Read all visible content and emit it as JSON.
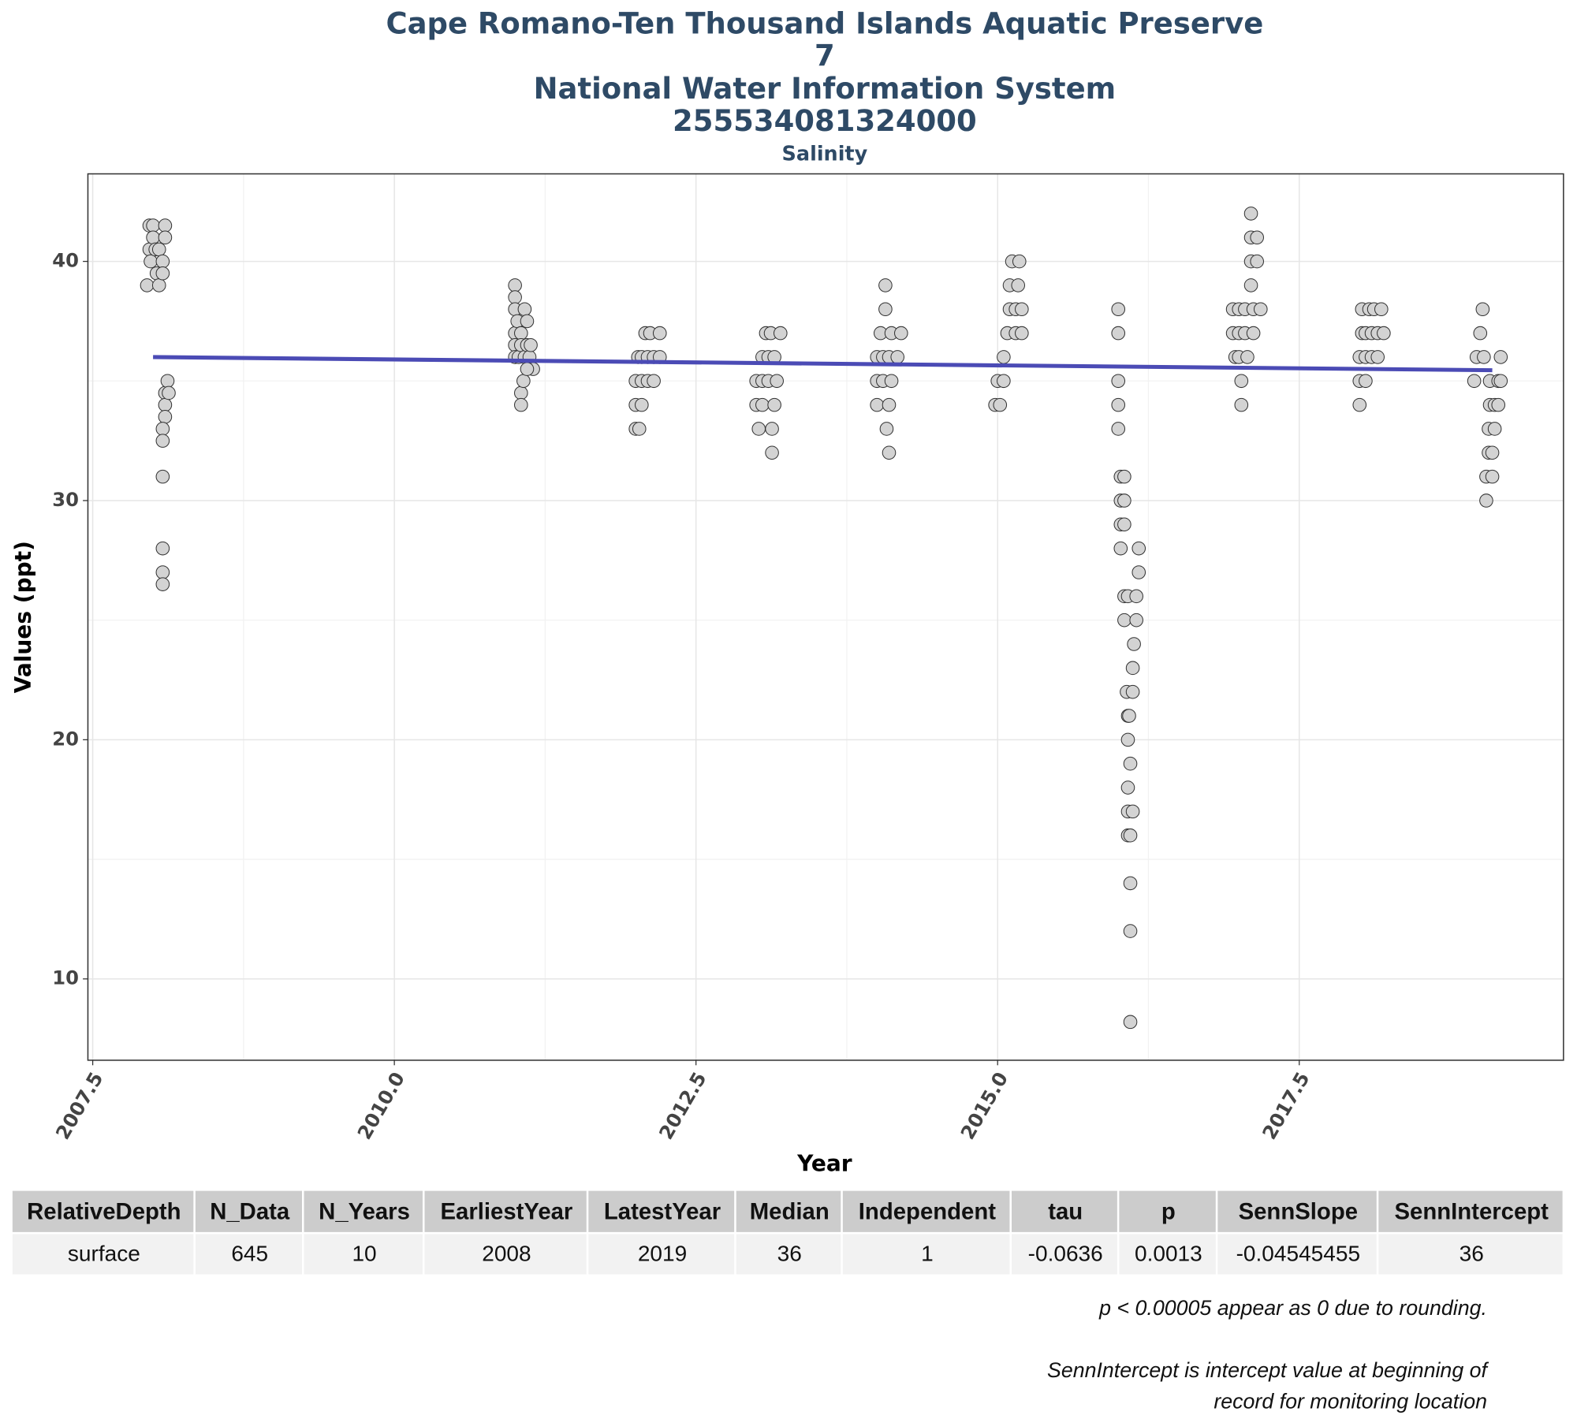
{
  "chart_data": {
    "type": "scatter",
    "title": [
      "Cape Romano-Ten Thousand Islands Aquatic Preserve",
      "7",
      "National Water Information System",
      "255534081324000"
    ],
    "subtitle": "Salinity",
    "x_label": "Year",
    "y_label": "Values (ppt)",
    "xlim": [
      2007.46,
      2019.69
    ],
    "ylim": [
      6.6,
      43.66
    ],
    "xticks": [
      2007.5,
      {
        "value": 2010,
        "label": "2010.0"
      },
      2012.5,
      {
        "value": 2015,
        "label": "2015.0"
      },
      2017.5
    ],
    "yticks": [
      10,
      20,
      30,
      40
    ],
    "grid": true,
    "point_color": "#d3d3d3",
    "x": [
      2007.95,
      2007.97,
      2007.97,
      2007.98,
      2008.0,
      2008.0,
      2008.02,
      2008.03,
      2008.05,
      2008.05,
      2008.1,
      2008.1,
      2008.08,
      2008.08,
      2008.1,
      2008.12,
      2008.1,
      2008.1,
      2008.08,
      2008.08,
      2008.08,
      2008.08,
      2008.08,
      2008.08,
      2008.13,
      2011.0,
      2011.0,
      2011.0,
      2011.0,
      2011.0,
      2011.0,
      2011.02,
      2011.03,
      2011.05,
      2011.05,
      2011.05,
      2011.05,
      2011.07,
      2011.08,
      2011.08,
      2011.1,
      2011.1,
      2011.12,
      2011.13,
      2011.15,
      2011.1,
      2012.0,
      2012.0,
      2012.0,
      2012.02,
      2012.05,
      2012.05,
      2012.05,
      2012.08,
      2012.1,
      2012.1,
      2012.12,
      2012.15,
      2012.15,
      2012.2,
      2012.2,
      2012.03,
      2013.0,
      2013.0,
      2013.02,
      2013.05,
      2013.05,
      2013.05,
      2013.08,
      2013.1,
      2013.1,
      2013.12,
      2013.13,
      2013.13,
      2013.15,
      2013.15,
      2013.17,
      2013.2,
      2014.0,
      2014.0,
      2014.0,
      2014.03,
      2014.05,
      2014.05,
      2014.07,
      2014.07,
      2014.08,
      2014.1,
      2014.1,
      2014.1,
      2014.12,
      2014.12,
      2014.17,
      2014.2,
      2014.98,
      2015.0,
      2015.02,
      2015.05,
      2015.05,
      2015.08,
      2015.1,
      2015.1,
      2015.12,
      2015.15,
      2015.15,
      2015.17,
      2015.18,
      2015.2,
      2015.2,
      2016.0,
      2016.0,
      2016.0,
      2016.0,
      2016.0,
      2016.02,
      2016.02,
      2016.02,
      2016.02,
      2016.05,
      2016.05,
      2016.05,
      2016.05,
      2016.05,
      2016.07,
      2016.08,
      2016.08,
      2016.08,
      2016.08,
      2016.08,
      2016.08,
      2016.1,
      2016.1,
      2016.1,
      2016.1,
      2016.12,
      2016.12,
      2016.13,
      2016.15,
      2016.15,
      2016.17,
      2016.17,
      2016.12,
      2016.1,
      2016.09,
      2016.95,
      2016.95,
      2016.97,
      2017.0,
      2017.0,
      2017.0,
      2017.02,
      2017.02,
      2017.05,
      2017.05,
      2017.07,
      2017.1,
      2017.1,
      2017.1,
      2017.1,
      2017.12,
      2017.12,
      2017.15,
      2017.15,
      2017.18,
      2018.0,
      2018.0,
      2018.0,
      2018.02,
      2018.02,
      2018.05,
      2018.05,
      2018.05,
      2018.08,
      2018.1,
      2018.1,
      2018.12,
      2018.15,
      2018.15,
      2018.18,
      2018.2,
      2018.95,
      2018.97,
      2019.0,
      2019.02,
      2019.03,
      2019.05,
      2019.05,
      2019.07,
      2019.07,
      2019.08,
      2019.08,
      2019.1,
      2019.1,
      2019.12,
      2019.12,
      2019.15,
      2019.15,
      2019.17,
      2019.17
    ],
    "values": [
      39,
      41.5,
      40.5,
      40,
      41.5,
      41,
      40.5,
      39.5,
      40.5,
      39,
      41.5,
      41,
      40,
      39.5,
      34.5,
      35,
      34,
      33.5,
      33,
      32.5,
      31,
      28,
      27,
      26.5,
      34.5,
      39,
      38.5,
      38,
      37,
      36.5,
      36,
      37.5,
      36,
      37,
      36.5,
      34.5,
      34,
      35,
      38,
      36,
      37.5,
      36.5,
      36,
      36.5,
      35.5,
      35.5,
      33,
      34,
      35,
      36,
      34,
      35,
      36,
      37,
      36,
      35,
      37,
      36,
      35,
      37,
      36,
      33,
      34,
      35,
      33,
      34,
      35,
      36,
      37,
      36,
      35,
      37,
      33,
      32,
      34,
      36,
      35,
      37,
      34,
      35,
      36,
      37,
      36,
      35,
      38,
      39,
      33,
      32,
      34,
      36,
      35,
      37,
      36,
      37,
      34,
      35,
      34,
      35,
      36,
      37,
      38,
      39,
      40,
      38,
      37,
      39,
      40,
      38,
      37,
      38,
      37,
      35,
      34,
      33,
      31,
      30,
      29,
      28,
      31,
      30,
      29,
      26,
      25,
      22,
      26,
      21,
      20,
      18,
      17,
      16,
      19,
      14,
      12,
      8.2,
      23,
      22,
      24,
      25,
      26,
      27,
      28,
      17,
      16,
      21,
      38,
      37,
      36,
      38,
      37,
      36,
      35,
      34,
      38,
      37,
      36,
      42,
      41,
      40,
      39,
      38,
      37,
      40,
      41,
      38,
      34,
      35,
      36,
      37,
      38,
      35,
      36,
      37,
      38,
      36,
      37,
      38,
      37,
      36,
      38,
      37,
      35,
      36,
      37,
      38,
      36,
      31,
      30,
      32,
      33,
      34,
      35,
      31,
      32,
      33,
      34,
      35,
      34,
      36,
      35
    ],
    "series": [
      {
        "color": "#4b4bb5",
        "x": [
          2008.0,
          2019.1
        ],
        "values": [
          36,
          35.45
        ]
      }
    ]
  },
  "table": {
    "header": [
      "RelativeDepth",
      "N_Data",
      "N_Years",
      "EarliestYear",
      "LatestYear",
      "Median",
      "Independent",
      "tau",
      "p",
      "SennSlope",
      "SennIntercept"
    ],
    "rows": [
      [
        "surface",
        "645",
        "10",
        "2008",
        "2019",
        "36",
        "1",
        "-0.0636",
        "0.0013",
        "-0.04545455",
        "36"
      ]
    ]
  },
  "notes": [
    "p < 0.00005 appear as 0 due to rounding.",
    "SennIntercept is intercept value at beginning of",
    "record for monitoring location"
  ]
}
